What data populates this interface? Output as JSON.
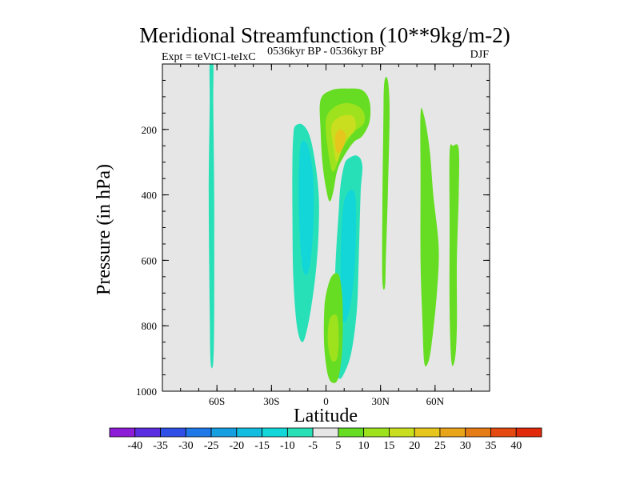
{
  "chart_data": {
    "type": "contour",
    "title": "Meridional Streamfunction (10**9kg/m-2)",
    "left_subtitle": "Expt = teVtC1-teIxC",
    "center_subtitle": "0536kyr BP - 0536kyr BP",
    "right_subtitle": "DJF",
    "xlabel": "Latitude",
    "ylabel": "Pressure (in hPa)",
    "xlim": [
      -90,
      90
    ],
    "ylim": [
      1000,
      0
    ],
    "x_ticks": [
      {
        "value": -60,
        "label": "60S"
      },
      {
        "value": -30,
        "label": "30S"
      },
      {
        "value": 0,
        "label": "0"
      },
      {
        "value": 30,
        "label": "30N"
      },
      {
        "value": 60,
        "label": "60N"
      }
    ],
    "y_ticks": [
      200,
      400,
      600,
      800,
      1000
    ],
    "contour_levels": [
      -40,
      -35,
      -30,
      -25,
      -20,
      -15,
      -10,
      -5,
      5,
      10,
      15,
      20,
      25,
      30,
      35,
      40
    ],
    "level_labels": [
      "-40",
      "-35",
      "-30",
      "-25",
      "-20",
      "-15",
      "-10",
      "-5",
      "5",
      "10",
      "15",
      "20",
      "25",
      "30",
      "35",
      "40"
    ],
    "level_colors": [
      "#8c1cd6",
      "#5a2ee0",
      "#2f4fe6",
      "#1f78e8",
      "#159fe0",
      "#12bde0",
      "#12d6d8",
      "#28e0b8",
      "#e6e6e6",
      "#66dd22",
      "#9ee21e",
      "#c8de1e",
      "#e6c61c",
      "#e9a51a",
      "#e57c16",
      "#e44a10",
      "#e02a0a"
    ],
    "background_color": "#e6e6e6",
    "features": [
      {
        "name": "cell-60s-strip",
        "value": -7,
        "points": [
          [
            -64,
            0
          ],
          [
            -62,
            0
          ],
          [
            -62,
            120
          ],
          [
            -61.5,
            400
          ],
          [
            -61.5,
            750
          ],
          [
            -62,
            910
          ],
          [
            -63.5,
            910
          ],
          [
            -64,
            750
          ],
          [
            -64.5,
            400
          ],
          [
            -64,
            120
          ]
        ]
      },
      {
        "name": "cell-south-negative",
        "value": -7,
        "points": [
          [
            -17,
            190
          ],
          [
            -13,
            185
          ],
          [
            -9,
            220
          ],
          [
            -6,
            300
          ],
          [
            -4,
            400
          ],
          [
            -4,
            500
          ],
          [
            -5,
            600
          ],
          [
            -7,
            700
          ],
          [
            -10,
            800
          ],
          [
            -13,
            850
          ],
          [
            -16,
            800
          ],
          [
            -18,
            650
          ],
          [
            -18.5,
            450
          ],
          [
            -18.5,
            300
          ],
          [
            -18,
            220
          ]
        ]
      },
      {
        "name": "cell-south-negative-core",
        "value": -12,
        "points": [
          [
            -14,
            250
          ],
          [
            -10,
            250
          ],
          [
            -7,
            350
          ],
          [
            -7,
            500
          ],
          [
            -9,
            620
          ],
          [
            -12,
            640
          ],
          [
            -14,
            560
          ],
          [
            -15,
            400
          ]
        ]
      },
      {
        "name": "cell-north-negative",
        "value": -7,
        "points": [
          [
            12,
            290
          ],
          [
            17,
            280
          ],
          [
            20,
            310
          ],
          [
            19,
            400
          ],
          [
            18,
            600
          ],
          [
            17,
            750
          ],
          [
            14,
            880
          ],
          [
            10,
            945
          ],
          [
            7,
            960
          ],
          [
            5,
            900
          ],
          [
            5,
            650
          ],
          [
            7,
            450
          ],
          [
            8,
            370
          ],
          [
            10,
            310
          ]
        ]
      },
      {
        "name": "cell-north-negative-core",
        "value": -12,
        "points": [
          [
            10,
            420
          ],
          [
            16,
            400
          ],
          [
            16,
            600
          ],
          [
            13,
            750
          ],
          [
            9,
            780
          ],
          [
            8,
            600
          ]
        ]
      },
      {
        "name": "cell-upper-positive",
        "value": 7,
        "points": [
          [
            -3,
            110
          ],
          [
            3,
            80
          ],
          [
            12,
            75
          ],
          [
            20,
            80
          ],
          [
            24,
            115
          ],
          [
            24,
            175
          ],
          [
            20,
            220
          ],
          [
            15,
            240
          ],
          [
            9,
            290
          ],
          [
            6,
            330
          ],
          [
            4,
            390
          ],
          [
            2,
            420
          ],
          [
            0,
            380
          ],
          [
            -2,
            300
          ],
          [
            -3,
            200
          ]
        ]
      },
      {
        "name": "cell-upper-positive-mid",
        "value": 12,
        "points": [
          [
            0,
            170
          ],
          [
            5,
            130
          ],
          [
            13,
            120
          ],
          [
            20,
            140
          ],
          [
            21,
            180
          ],
          [
            15,
            210
          ],
          [
            9,
            260
          ],
          [
            4,
            330
          ],
          [
            1,
            260
          ]
        ]
      },
      {
        "name": "cell-upper-positive-high",
        "value": 17,
        "points": [
          [
            3,
            190
          ],
          [
            8,
            160
          ],
          [
            15,
            160
          ],
          [
            16,
            200
          ],
          [
            10,
            240
          ],
          [
            6,
            300
          ],
          [
            4,
            250
          ]
        ]
      },
      {
        "name": "cell-upper-positive-core",
        "value": 21,
        "points": [
          [
            5,
            220
          ],
          [
            8,
            200
          ],
          [
            11,
            220
          ],
          [
            9,
            260
          ],
          [
            6,
            270
          ]
        ]
      },
      {
        "name": "cell-lower-positive",
        "value": 7,
        "points": [
          [
            0,
            705
          ],
          [
            3,
            650
          ],
          [
            7,
            645
          ],
          [
            9,
            720
          ],
          [
            9,
            860
          ],
          [
            7,
            955
          ],
          [
            4,
            975
          ],
          [
            1,
            950
          ],
          [
            -1,
            860
          ],
          [
            -1,
            760
          ]
        ]
      },
      {
        "name": "cell-lower-positive-core",
        "value": 12,
        "points": [
          [
            2,
            780
          ],
          [
            6,
            770
          ],
          [
            7,
            840
          ],
          [
            6,
            900
          ],
          [
            3,
            905
          ],
          [
            1,
            850
          ]
        ]
      },
      {
        "name": "cell-30n-strip",
        "value": 7,
        "points": [
          [
            32,
            60
          ],
          [
            34,
            50
          ],
          [
            35,
            150
          ],
          [
            34,
            400
          ],
          [
            33,
            580
          ],
          [
            32.5,
            680
          ],
          [
            31,
            660
          ],
          [
            31,
            450
          ],
          [
            31.5,
            200
          ]
        ]
      },
      {
        "name": "cell-55n",
        "value": 7,
        "points": [
          [
            52,
            150
          ],
          [
            54,
            160
          ],
          [
            57,
            260
          ],
          [
            59,
            400
          ],
          [
            62,
            560
          ],
          [
            61,
            700
          ],
          [
            58,
            860
          ],
          [
            56,
            915
          ],
          [
            54,
            910
          ],
          [
            53,
            780
          ],
          [
            52,
            600
          ],
          [
            52,
            350
          ]
        ]
      },
      {
        "name": "cell-70n",
        "value": 7,
        "points": [
          [
            68,
            270
          ],
          [
            70,
            250
          ],
          [
            73,
            260
          ],
          [
            73,
            400
          ],
          [
            72,
            600
          ],
          [
            72,
            800
          ],
          [
            71,
            900
          ],
          [
            69,
            910
          ],
          [
            68,
            750
          ],
          [
            68,
            500
          ]
        ]
      }
    ]
  }
}
